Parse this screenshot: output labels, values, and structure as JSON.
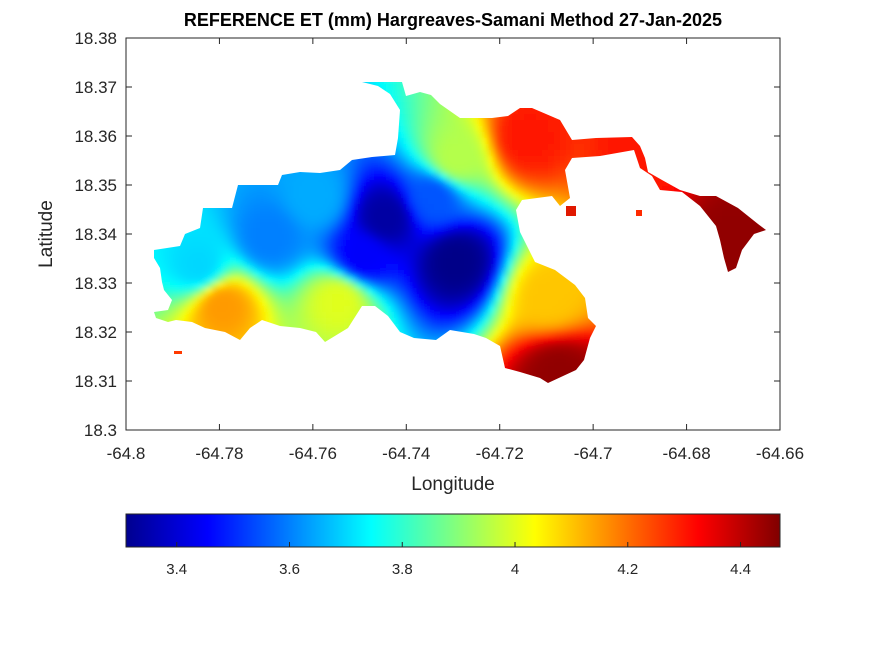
{
  "chart_data": {
    "type": "heatmap",
    "title": "REFERENCE ET (mm) Hargreaves-Samani Method  27-Jan-2025",
    "xlabel": "Longitude",
    "ylabel": "Latitude",
    "xlim": [
      -64.8,
      -64.66
    ],
    "ylim": [
      18.3,
      18.38
    ],
    "x_ticks": [
      -64.8,
      -64.78,
      -64.76,
      -64.74,
      -64.72,
      -64.7,
      -64.68,
      -64.66
    ],
    "x_tick_labels": [
      "-64.8",
      "-64.78",
      "-64.76",
      "-64.74",
      "-64.72",
      "-64.7",
      "-64.68",
      "-64.66"
    ],
    "y_ticks": [
      18.3,
      18.31,
      18.32,
      18.33,
      18.34,
      18.35,
      18.36,
      18.37,
      18.38
    ],
    "y_tick_labels": [
      "18.3",
      "18.31",
      "18.32",
      "18.33",
      "18.34",
      "18.35",
      "18.36",
      "18.37",
      "18.38"
    ],
    "grid": false,
    "colormap": "jet",
    "colorbar": {
      "orientation": "horizontal",
      "location": "bottom",
      "range": [
        3.31,
        4.47
      ],
      "ticks": [
        3.4,
        3.6,
        3.8,
        4,
        4.2,
        4.4
      ],
      "tick_labels": [
        "3.4",
        "3.6",
        "3.8",
        "4",
        "4.2",
        "4.4"
      ]
    },
    "field_approx": {
      "description": "approximate spatial ET field in mm",
      "points": [
        {
          "lon": -64.745,
          "lat": 18.344,
          "value": 3.35
        },
        {
          "lon": -64.73,
          "lat": 18.335,
          "value": 3.32
        },
        {
          "lon": -64.75,
          "lat": 18.336,
          "value": 3.45
        },
        {
          "lon": -64.735,
          "lat": 18.348,
          "value": 3.55
        },
        {
          "lon": -64.77,
          "lat": 18.34,
          "value": 3.6
        },
        {
          "lon": -64.785,
          "lat": 18.334,
          "value": 3.7
        },
        {
          "lon": -64.76,
          "lat": 18.348,
          "value": 3.65
        },
        {
          "lon": -64.73,
          "lat": 18.356,
          "value": 3.95
        },
        {
          "lon": -64.755,
          "lat": 18.327,
          "value": 4.0
        },
        {
          "lon": -64.78,
          "lat": 18.326,
          "value": 4.15
        },
        {
          "lon": -64.715,
          "lat": 18.36,
          "value": 4.3
        },
        {
          "lon": -64.71,
          "lat": 18.328,
          "value": 4.1
        },
        {
          "lon": -64.69,
          "lat": 18.358,
          "value": 4.3
        },
        {
          "lon": -64.67,
          "lat": 18.34,
          "value": 4.45
        },
        {
          "lon": -64.708,
          "lat": 18.312,
          "value": 4.45
        }
      ]
    }
  }
}
